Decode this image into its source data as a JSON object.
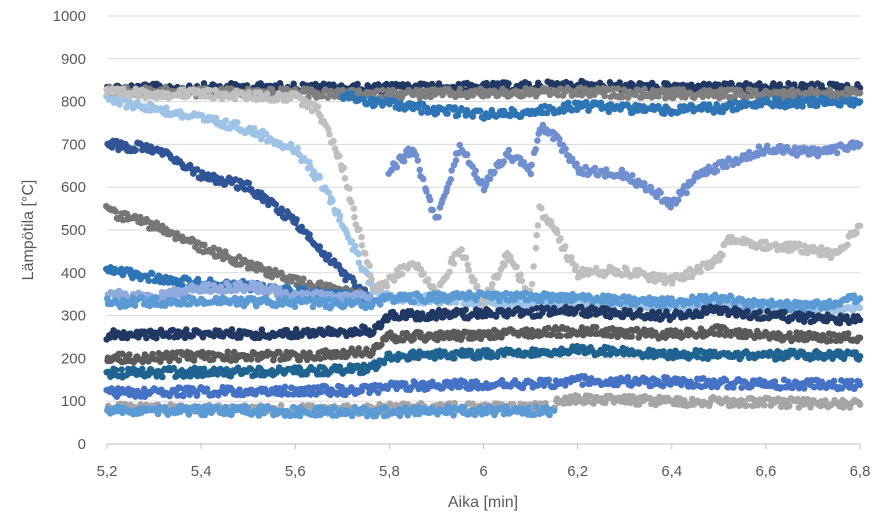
{
  "chart_data": {
    "type": "scatter",
    "title": "",
    "xlabel": "Aika [min]",
    "ylabel": "Lämpötila [°C]",
    "xlim": [
      5.2,
      6.8
    ],
    "ylim": [
      0,
      1000
    ],
    "x_ticks": [
      "5,2",
      "5,4",
      "5,6",
      "5,8",
      "6",
      "6,2",
      "6,4",
      "6,6",
      "6,8"
    ],
    "y_ticks": [
      "0",
      "100",
      "200",
      "300",
      "400",
      "500",
      "600",
      "700",
      "800",
      "900",
      "1000"
    ],
    "grid": "horizontal",
    "legend": "none",
    "series": [
      {
        "color": "#1f3864",
        "points": [
          [
            5.2,
            830
          ],
          [
            5.4,
            832
          ],
          [
            5.6,
            833
          ],
          [
            5.76,
            830
          ],
          [
            5.8,
            832
          ],
          [
            6.0,
            833
          ],
          [
            6.2,
            838
          ],
          [
            6.4,
            832
          ],
          [
            6.6,
            833
          ],
          [
            6.8,
            832
          ]
        ]
      },
      {
        "color": "#7f7f7f",
        "points": [
          [
            5.2,
            825
          ],
          [
            5.4,
            822
          ],
          [
            5.6,
            820
          ],
          [
            5.76,
            815
          ],
          [
            5.8,
            818
          ],
          [
            6.0,
            820
          ],
          [
            6.2,
            822
          ],
          [
            6.4,
            818
          ],
          [
            6.6,
            818
          ],
          [
            6.8,
            820
          ]
        ]
      },
      {
        "color": "#9dc3e6",
        "points": [
          [
            5.2,
            805
          ],
          [
            5.3,
            785
          ],
          [
            5.4,
            760
          ],
          [
            5.5,
            735
          ],
          [
            5.6,
            690
          ],
          [
            5.65,
            620
          ],
          [
            5.7,
            520
          ],
          [
            5.74,
            420
          ],
          [
            5.77,
            360
          ],
          [
            5.8,
            340
          ],
          [
            6.0,
            335
          ],
          [
            6.2,
            330
          ],
          [
            6.4,
            325
          ],
          [
            6.6,
            320
          ],
          [
            6.8,
            318
          ]
        ]
      },
      {
        "color": "#bfbfbf",
        "points": [
          [
            5.2,
            820
          ],
          [
            5.4,
            818
          ],
          [
            5.6,
            810
          ],
          [
            5.65,
            780
          ],
          [
            5.7,
            650
          ],
          [
            5.74,
            480
          ],
          [
            5.77,
            360
          ],
          [
            5.8,
            380
          ],
          [
            5.85,
            430
          ],
          [
            5.9,
            350
          ],
          [
            5.95,
            460
          ],
          [
            6.0,
            330
          ],
          [
            6.05,
            440
          ],
          [
            6.1,
            350
          ],
          [
            6.12,
            550
          ],
          [
            6.15,
            500
          ],
          [
            6.2,
            400
          ],
          [
            6.3,
            405
          ],
          [
            6.4,
            380
          ],
          [
            6.5,
            430
          ],
          [
            6.52,
            480
          ],
          [
            6.6,
            465
          ],
          [
            6.7,
            455
          ],
          [
            6.75,
            440
          ],
          [
            6.8,
            510
          ]
        ]
      },
      {
        "color": "#2e75b6",
        "points": [
          [
            5.7,
            815
          ],
          [
            5.76,
            800
          ],
          [
            5.8,
            795
          ],
          [
            5.9,
            780
          ],
          [
            6.0,
            770
          ],
          [
            6.1,
            775
          ],
          [
            6.2,
            790
          ],
          [
            6.3,
            785
          ],
          [
            6.4,
            780
          ],
          [
            6.5,
            785
          ],
          [
            6.6,
            795
          ],
          [
            6.7,
            798
          ],
          [
            6.8,
            800
          ]
        ]
      },
      {
        "color": "#6f8fd0",
        "points": [
          [
            5.8,
            640
          ],
          [
            5.85,
            690
          ],
          [
            5.9,
            520
          ],
          [
            5.95,
            700
          ],
          [
            6.0,
            600
          ],
          [
            6.05,
            680
          ],
          [
            6.1,
            640
          ],
          [
            6.12,
            740
          ],
          [
            6.15,
            720
          ],
          [
            6.2,
            640
          ],
          [
            6.3,
            630
          ],
          [
            6.35,
            600
          ],
          [
            6.4,
            560
          ],
          [
            6.45,
            620
          ],
          [
            6.5,
            650
          ],
          [
            6.55,
            670
          ],
          [
            6.6,
            690
          ],
          [
            6.7,
            680
          ],
          [
            6.8,
            700
          ]
        ]
      },
      {
        "color": "#2f5597",
        "points": [
          [
            5.2,
            700
          ],
          [
            5.3,
            690
          ],
          [
            5.4,
            630
          ],
          [
            5.5,
            600
          ],
          [
            5.6,
            520
          ],
          [
            5.65,
            460
          ],
          [
            5.7,
            400
          ],
          [
            5.75,
            350
          ]
        ]
      },
      {
        "color": "#767676",
        "points": [
          [
            5.2,
            545
          ],
          [
            5.3,
            510
          ],
          [
            5.4,
            460
          ],
          [
            5.5,
            420
          ],
          [
            5.6,
            380
          ],
          [
            5.7,
            360
          ],
          [
            5.76,
            340
          ]
        ]
      },
      {
        "color": "#2e75b6",
        "points": [
          [
            5.2,
            405
          ],
          [
            5.3,
            390
          ],
          [
            5.4,
            375
          ],
          [
            5.5,
            370
          ],
          [
            5.6,
            355
          ],
          [
            5.7,
            345
          ],
          [
            5.76,
            340
          ]
        ]
      },
      {
        "color": "#8faadc",
        "points": [
          [
            5.2,
            350
          ],
          [
            5.3,
            340
          ],
          [
            5.4,
            365
          ],
          [
            5.5,
            368
          ],
          [
            5.6,
            350
          ],
          [
            5.7,
            340
          ],
          [
            5.76,
            345
          ]
        ]
      },
      {
        "color": "#5b9bd5",
        "points": [
          [
            5.2,
            330
          ],
          [
            5.4,
            335
          ],
          [
            5.6,
            330
          ],
          [
            5.76,
            325
          ],
          [
            5.8,
            340
          ],
          [
            6.0,
            345
          ],
          [
            6.2,
            340
          ],
          [
            6.4,
            330
          ],
          [
            6.5,
            340
          ],
          [
            6.6,
            325
          ],
          [
            6.7,
            322
          ],
          [
            6.8,
            340
          ]
        ]
      },
      {
        "color": "#203864",
        "points": [
          [
            5.2,
            255
          ],
          [
            5.4,
            258
          ],
          [
            5.6,
            258
          ],
          [
            5.76,
            265
          ],
          [
            5.8,
            300
          ],
          [
            6.0,
            305
          ],
          [
            6.2,
            310
          ],
          [
            6.4,
            300
          ],
          [
            6.5,
            315
          ],
          [
            6.6,
            300
          ],
          [
            6.8,
            290
          ]
        ]
      },
      {
        "color": "#5a5a5a",
        "points": [
          [
            5.2,
            200
          ],
          [
            5.4,
            205
          ],
          [
            5.6,
            205
          ],
          [
            5.76,
            215
          ],
          [
            5.8,
            250
          ],
          [
            6.0,
            255
          ],
          [
            6.2,
            265
          ],
          [
            6.4,
            255
          ],
          [
            6.5,
            265
          ],
          [
            6.6,
            252
          ],
          [
            6.8,
            248
          ]
        ]
      },
      {
        "color": "#1f6391",
        "points": [
          [
            5.2,
            165
          ],
          [
            5.4,
            168
          ],
          [
            5.6,
            170
          ],
          [
            5.76,
            175
          ],
          [
            5.8,
            205
          ],
          [
            6.0,
            210
          ],
          [
            6.2,
            220
          ],
          [
            6.4,
            210
          ],
          [
            6.6,
            208
          ],
          [
            6.8,
            205
          ]
        ]
      },
      {
        "color": "#4472c4",
        "points": [
          [
            5.2,
            120
          ],
          [
            5.4,
            122
          ],
          [
            5.6,
            125
          ],
          [
            5.76,
            125
          ],
          [
            5.8,
            135
          ],
          [
            6.0,
            140
          ],
          [
            6.15,
            140
          ],
          [
            6.2,
            148
          ],
          [
            6.4,
            145
          ],
          [
            6.6,
            140
          ],
          [
            6.8,
            138
          ]
        ]
      },
      {
        "color": "#a5a5a5",
        "points": [
          [
            5.2,
            85
          ],
          [
            5.4,
            82
          ],
          [
            5.6,
            80
          ],
          [
            5.76,
            80
          ],
          [
            5.8,
            85
          ],
          [
            6.0,
            85
          ],
          [
            6.15,
            85
          ],
          [
            6.16,
            105
          ],
          [
            6.4,
            100
          ],
          [
            6.6,
            98
          ],
          [
            6.8,
            92
          ]
        ]
      },
      {
        "color": "#5b9bd5",
        "points": [
          [
            5.2,
            80
          ],
          [
            5.4,
            78
          ],
          [
            5.6,
            76
          ],
          [
            5.76,
            75
          ],
          [
            5.8,
            76
          ],
          [
            6.0,
            78
          ],
          [
            6.15,
            78
          ]
        ]
      }
    ]
  }
}
